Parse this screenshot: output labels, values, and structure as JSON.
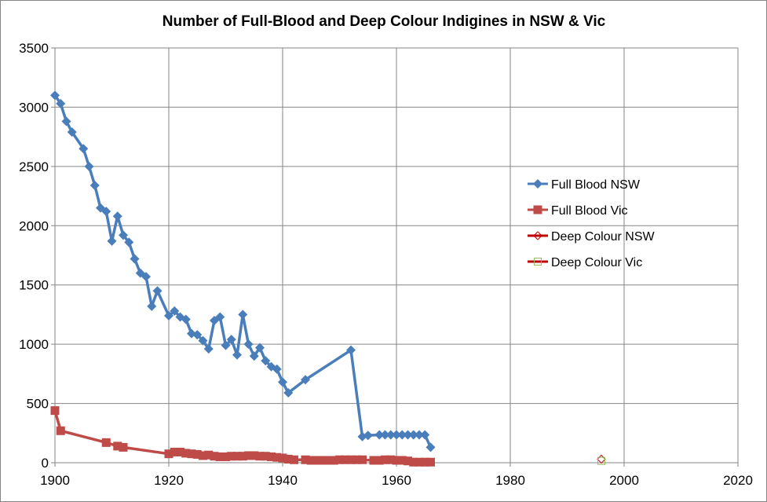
{
  "chart_data": {
    "type": "line",
    "title": "Number of Full-Blood and Deep Colour Indigines in NSW & Vic",
    "xlabel": "",
    "ylabel": "",
    "xlim": [
      1900,
      2020
    ],
    "ylim": [
      0,
      3500
    ],
    "xticks": [
      1900,
      1920,
      1940,
      1960,
      1980,
      2000,
      2020
    ],
    "yticks": [
      0,
      500,
      1000,
      1500,
      2000,
      2500,
      3000,
      3500
    ],
    "grid": true,
    "legend_position": "right",
    "series": [
      {
        "name": "Full Blood NSW",
        "color": "#4a7ebb",
        "marker": "diamond",
        "points": [
          [
            1900,
            3100
          ],
          [
            1901,
            3030
          ],
          [
            1902,
            2880
          ],
          [
            1903,
            2790
          ],
          [
            1905,
            2650
          ],
          [
            1906,
            2500
          ],
          [
            1907,
            2340
          ],
          [
            1908,
            2150
          ],
          [
            1909,
            2120
          ],
          [
            1910,
            1870
          ],
          [
            1911,
            2080
          ],
          [
            1912,
            1920
          ],
          [
            1913,
            1860
          ],
          [
            1914,
            1720
          ],
          [
            1915,
            1600
          ],
          [
            1916,
            1570
          ],
          [
            1917,
            1320
          ],
          [
            1918,
            1450
          ],
          [
            1920,
            1240
          ],
          [
            1921,
            1280
          ],
          [
            1922,
            1230
          ],
          [
            1923,
            1210
          ],
          [
            1924,
            1090
          ],
          [
            1925,
            1080
          ],
          [
            1926,
            1030
          ],
          [
            1927,
            960
          ],
          [
            1928,
            1200
          ],
          [
            1929,
            1230
          ],
          [
            1930,
            990
          ],
          [
            1931,
            1040
          ],
          [
            1932,
            910
          ],
          [
            1933,
            1250
          ],
          [
            1934,
            1000
          ],
          [
            1935,
            900
          ],
          [
            1936,
            970
          ],
          [
            1937,
            860
          ],
          [
            1938,
            810
          ],
          [
            1939,
            790
          ],
          [
            1940,
            680
          ],
          [
            1941,
            590
          ],
          [
            1944,
            700
          ],
          [
            1952,
            950
          ],
          [
            1954,
            220
          ],
          [
            1955,
            230
          ],
          [
            1957,
            235
          ],
          [
            1958,
            235
          ],
          [
            1959,
            235
          ],
          [
            1960,
            235
          ],
          [
            1961,
            235
          ],
          [
            1962,
            235
          ],
          [
            1963,
            235
          ],
          [
            1964,
            235
          ],
          [
            1965,
            235
          ],
          [
            1966,
            130
          ]
        ]
      },
      {
        "name": "Full Blood Vic",
        "color": "#be4b48",
        "marker": "square",
        "points": [
          [
            1900,
            440
          ],
          [
            1901,
            270
          ],
          [
            1909,
            170
          ],
          [
            1911,
            140
          ],
          [
            1912,
            130
          ],
          [
            1920,
            75
          ],
          [
            1921,
            90
          ],
          [
            1922,
            90
          ],
          [
            1923,
            80
          ],
          [
            1924,
            75
          ],
          [
            1925,
            70
          ],
          [
            1926,
            60
          ],
          [
            1927,
            65
          ],
          [
            1928,
            55
          ],
          [
            1929,
            50
          ],
          [
            1930,
            50
          ],
          [
            1931,
            55
          ],
          [
            1932,
            55
          ],
          [
            1933,
            55
          ],
          [
            1934,
            60
          ],
          [
            1935,
            60
          ],
          [
            1936,
            55
          ],
          [
            1937,
            55
          ],
          [
            1938,
            50
          ],
          [
            1939,
            45
          ],
          [
            1940,
            40
          ],
          [
            1941,
            30
          ],
          [
            1942,
            25
          ],
          [
            1944,
            25
          ],
          [
            1945,
            20
          ],
          [
            1946,
            20
          ],
          [
            1947,
            20
          ],
          [
            1948,
            20
          ],
          [
            1949,
            20
          ],
          [
            1950,
            25
          ],
          [
            1951,
            25
          ],
          [
            1952,
            25
          ],
          [
            1953,
            25
          ],
          [
            1954,
            25
          ],
          [
            1956,
            20
          ],
          [
            1957,
            20
          ],
          [
            1958,
            25
          ],
          [
            1959,
            25
          ],
          [
            1960,
            20
          ],
          [
            1961,
            20
          ],
          [
            1962,
            15
          ],
          [
            1963,
            5
          ],
          [
            1964,
            5
          ],
          [
            1965,
            5
          ],
          [
            1966,
            5
          ]
        ]
      },
      {
        "name": "Deep Colour NSW",
        "color": "#c00000",
        "marker": "diamond-open",
        "points": [
          [
            1996,
            30
          ]
        ]
      },
      {
        "name": "Deep Colour Vic",
        "color": "#9bbb59",
        "marker": "square-open",
        "points": [
          [
            1996,
            15
          ]
        ]
      }
    ]
  }
}
